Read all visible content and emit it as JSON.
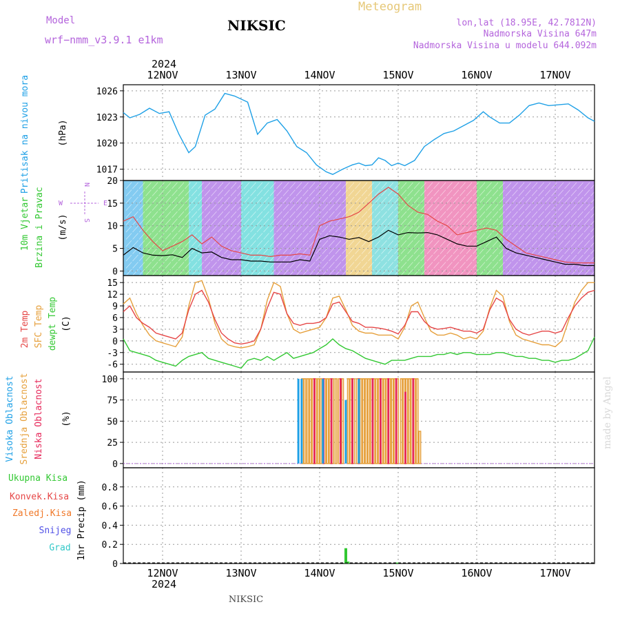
{
  "header": {
    "model_label": "Model",
    "model_value": "wrf−nmm_v3.9.1 e1km",
    "station": "NIKSIC",
    "meteogram": "Meteogram",
    "coords": "lon,lat (18.95E, 42.7812N)",
    "elevation": "Nadmorska Visina 647m",
    "elevation_model": "Nadmorska Visina u modelu 644.092m",
    "year_top": "2024",
    "year_bottom": "2024",
    "footer_station": "NIKSIC",
    "credit": "made by Angel"
  },
  "colors": {
    "pressure": "#1ea0e6",
    "temp2m": "#e64646",
    "sfc_temp": "#e6a03c",
    "dewpoint": "#32c832",
    "high_cloud": "#1ea0e6",
    "mid_cloud": "#e6a03c",
    "low_cloud": "#e6285a",
    "total_precip": "#32c832",
    "conv_precip": "#e64646",
    "frozen_precip": "#f07828",
    "snow": "#5050e6",
    "hail": "#32c8c8",
    "wind_legend": "#b464dc"
  },
  "chart_data": [
    {
      "type": "line",
      "panel": "pressure",
      "xlabels": [
        "12NOV",
        "13NOV",
        "14NOV",
        "15NOV",
        "16NOV",
        "17NOV"
      ],
      "ylabel_main": "Pritisak na nivou mora",
      "ylabel_unit": "(hPa)",
      "yticks": [
        1017,
        1020,
        1023,
        1026
      ],
      "ylim": [
        1015.7,
        1026.7
      ],
      "xlim": [
        0,
        144
      ],
      "series": [
        {
          "x": [
            0,
            2,
            5,
            8,
            11,
            14,
            17,
            20,
            22,
            25,
            28,
            31,
            34,
            38,
            41,
            44,
            47,
            50,
            53,
            56,
            59,
            62,
            64,
            67,
            70,
            72,
            74,
            76,
            78,
            80,
            82,
            84,
            86,
            89,
            92,
            95,
            98,
            101,
            104,
            107,
            110,
            112,
            115,
            118,
            121,
            124,
            127,
            130,
            133,
            136,
            139,
            142,
            144
          ],
          "y": [
            1023.5,
            1022.9,
            1023.3,
            1024.0,
            1023.4,
            1023.6,
            1021.0,
            1018.9,
            1019.6,
            1023.2,
            1023.9,
            1025.7,
            1025.4,
            1024.7,
            1021.0,
            1022.3,
            1022.7,
            1021.4,
            1019.6,
            1018.9,
            1017.5,
            1016.7,
            1016.4,
            1017.0,
            1017.5,
            1017.7,
            1017.4,
            1017.5,
            1018.3,
            1018.0,
            1017.4,
            1017.7,
            1017.4,
            1018.0,
            1019.6,
            1020.4,
            1021.1,
            1021.4,
            1022.0,
            1022.6,
            1023.6,
            1023.0,
            1022.3,
            1022.3,
            1023.2,
            1024.3,
            1024.6,
            1024.3,
            1024.4,
            1024.5,
            1023.8,
            1022.9,
            1022.5
          ]
        }
      ]
    },
    {
      "type": "line",
      "panel": "wind",
      "xlabels": [
        "12NOV",
        "13NOV",
        "14NOV",
        "15NOV",
        "16NOV",
        "17NOV"
      ],
      "ylabel_main": "10m Vjetar",
      "ylabel_sub": "Brzina i Pravac",
      "ylabel_unit": "(m/s)",
      "direction_legend": [
        "N",
        "E",
        "S",
        "W"
      ],
      "yticks": [
        0,
        5,
        10,
        15,
        20
      ],
      "ylim": [
        -1,
        20
      ],
      "xlim": [
        0,
        144
      ],
      "series": [
        {
          "x": [
            0,
            3,
            6,
            9,
            12,
            15,
            18,
            21,
            24,
            27,
            30,
            33,
            36,
            39,
            42,
            45,
            48,
            51,
            54,
            57,
            60,
            63,
            66,
            69,
            72,
            75,
            78,
            81,
            84,
            87,
            90,
            93,
            96,
            99,
            102,
            105,
            108,
            111,
            114,
            117,
            120,
            123,
            126,
            129,
            132,
            135,
            138,
            141,
            144
          ],
          "y": [
            3.5,
            5.2,
            4.0,
            3.5,
            3.4,
            3.6,
            3.0,
            5.0,
            4.0,
            4.2,
            3.0,
            2.5,
            2.5,
            2.2,
            2.2,
            2.0,
            2.0,
            2.0,
            2.5,
            2.2,
            7.0,
            7.8,
            7.5,
            7.0,
            7.4,
            6.5,
            7.5,
            9.0,
            8.0,
            8.5,
            8.4,
            8.5,
            8.0,
            7.0,
            6.0,
            5.5,
            5.5,
            6.5,
            7.5,
            5.0,
            4.0,
            3.5,
            3.0,
            2.5,
            2.0,
            1.5,
            1.5,
            1.2,
            1.2
          ]
        },
        {
          "x": [
            0,
            3,
            6,
            9,
            12,
            15,
            18,
            21,
            24,
            27,
            30,
            33,
            36,
            39,
            42,
            45,
            48,
            51,
            54,
            57,
            60,
            63,
            66,
            69,
            72,
            75,
            78,
            81,
            84,
            87,
            90,
            93,
            96,
            99,
            102,
            105,
            108,
            111,
            114,
            117,
            120,
            123,
            126,
            129,
            132,
            135,
            138,
            141,
            144
          ],
          "y": [
            11.0,
            12.0,
            9.0,
            6.5,
            4.5,
            5.5,
            6.5,
            8.0,
            6.0,
            7.5,
            5.5,
            4.5,
            4.0,
            3.5,
            3.5,
            3.2,
            3.5,
            3.5,
            3.8,
            3.5,
            10.0,
            11.0,
            11.5,
            12.0,
            13.0,
            15.0,
            17.0,
            18.5,
            17.0,
            14.5,
            13.0,
            12.5,
            11.0,
            10.0,
            8.0,
            8.5,
            9.0,
            9.5,
            9.0,
            7.0,
            5.5,
            4.0,
            3.5,
            3.0,
            2.5,
            2.0,
            1.8,
            1.8,
            1.8
          ]
        }
      ]
    },
    {
      "type": "line",
      "panel": "temperature",
      "xlabels": [
        "12NOV",
        "13NOV",
        "14NOV",
        "15NOV",
        "16NOV",
        "17NOV"
      ],
      "ylabel_1": "2m Temp",
      "ylabel_2": "SFC Temp",
      "ylabel_3": "dewpt Temp",
      "ylabel_unit": "(C)",
      "yticks": [
        -6,
        -3,
        0,
        3,
        6,
        9,
        12,
        15
      ],
      "ylim": [
        -8,
        16.8
      ],
      "xlim": [
        0,
        144
      ],
      "series": [
        {
          "x": [
            0,
            2,
            4,
            6,
            8,
            10,
            12,
            14,
            16,
            18,
            20,
            22,
            24,
            26,
            28,
            30,
            32,
            34,
            36,
            38,
            40,
            42,
            44,
            46,
            48,
            50,
            52,
            54,
            56,
            58,
            60,
            62,
            64,
            66,
            68,
            70,
            72,
            74,
            76,
            78,
            80,
            82,
            84,
            86,
            88,
            90,
            92,
            94,
            96,
            98,
            100,
            102,
            104,
            106,
            108,
            110,
            112,
            114,
            116,
            118,
            120,
            122,
            124,
            126,
            128,
            130,
            132,
            134,
            136,
            138,
            140,
            142,
            144
          ],
          "y": [
            7.5,
            9.0,
            6.0,
            4.5,
            3.5,
            2.0,
            1.5,
            1.0,
            0.5,
            2.0,
            8.0,
            12.0,
            13.0,
            10.0,
            5.5,
            2.0,
            0.5,
            -0.5,
            -0.8,
            -0.5,
            0.0,
            3.0,
            8.5,
            12.5,
            12.0,
            7.0,
            4.5,
            4.0,
            4.5,
            4.5,
            4.8,
            6.0,
            9.5,
            10.0,
            7.5,
            5.0,
            4.5,
            3.5,
            3.5,
            3.3,
            3.0,
            2.5,
            1.8,
            4.0,
            7.5,
            7.5,
            5.0,
            3.5,
            3.0,
            3.2,
            3.5,
            3.0,
            2.5,
            2.5,
            2.0,
            3.0,
            8.0,
            11.0,
            10.0,
            5.5,
            3.0,
            2.0,
            1.5,
            2.0,
            2.5,
            2.5,
            2.0,
            2.5,
            6.0,
            9.0,
            11.0,
            12.5,
            13.0
          ]
        },
        {
          "x": [
            0,
            2,
            4,
            6,
            8,
            10,
            12,
            14,
            16,
            18,
            20,
            22,
            24,
            26,
            28,
            30,
            32,
            34,
            36,
            38,
            40,
            42,
            44,
            46,
            48,
            50,
            52,
            54,
            56,
            58,
            60,
            62,
            64,
            66,
            68,
            70,
            72,
            74,
            76,
            78,
            80,
            82,
            84,
            86,
            88,
            90,
            92,
            94,
            96,
            98,
            100,
            102,
            104,
            106,
            108,
            110,
            112,
            114,
            116,
            118,
            120,
            122,
            124,
            126,
            128,
            130,
            132,
            134,
            136,
            138,
            140,
            142,
            144
          ],
          "y": [
            9.5,
            11.0,
            7.0,
            4.0,
            1.5,
            0.0,
            -0.5,
            -1.0,
            -1.5,
            1.0,
            9.0,
            15.0,
            15.5,
            11.0,
            4.5,
            0.5,
            -1.0,
            -1.5,
            -1.8,
            -1.5,
            -1.0,
            3.0,
            10.5,
            15.0,
            14.0,
            7.0,
            3.0,
            2.0,
            2.5,
            3.0,
            3.5,
            6.0,
            11.0,
            11.5,
            8.0,
            4.0,
            2.5,
            2.0,
            2.0,
            1.5,
            1.5,
            1.5,
            0.5,
            3.5,
            9.0,
            10.0,
            6.0,
            2.5,
            1.5,
            1.5,
            2.0,
            1.5,
            0.5,
            1.0,
            0.5,
            2.5,
            8.5,
            13.0,
            11.5,
            5.0,
            1.5,
            0.5,
            0.0,
            -0.5,
            -1.0,
            -1.0,
            -1.5,
            0.0,
            5.0,
            10.0,
            13.0,
            15.0,
            15.0
          ]
        },
        {
          "x": [
            0,
            2,
            4,
            6,
            8,
            10,
            12,
            14,
            16,
            18,
            20,
            22,
            24,
            26,
            28,
            30,
            32,
            34,
            36,
            38,
            40,
            42,
            44,
            46,
            48,
            50,
            52,
            54,
            56,
            58,
            60,
            62,
            64,
            66,
            68,
            70,
            72,
            74,
            76,
            78,
            80,
            82,
            84,
            86,
            88,
            90,
            92,
            94,
            96,
            98,
            100,
            102,
            104,
            106,
            108,
            110,
            112,
            114,
            116,
            118,
            120,
            122,
            124,
            126,
            128,
            130,
            132,
            134,
            136,
            138,
            140,
            142,
            144
          ],
          "y": [
            0.5,
            -2.5,
            -3.0,
            -3.5,
            -4.0,
            -5.0,
            -5.5,
            -6.0,
            -6.5,
            -5.0,
            -4.0,
            -3.5,
            -3.0,
            -4.5,
            -5.0,
            -5.5,
            -6.0,
            -6.5,
            -7.0,
            -5.0,
            -4.5,
            -5.0,
            -4.0,
            -5.0,
            -4.0,
            -3.0,
            -4.5,
            -4.0,
            -3.5,
            -3.0,
            -2.0,
            -1.0,
            0.5,
            -1.0,
            -2.0,
            -2.5,
            -3.5,
            -4.5,
            -5.0,
            -5.5,
            -6.0,
            -5.0,
            -5.0,
            -5.0,
            -4.5,
            -4.0,
            -4.0,
            -4.0,
            -3.5,
            -3.5,
            -3.0,
            -3.5,
            -3.0,
            -3.0,
            -3.5,
            -3.5,
            -3.5,
            -3.0,
            -3.0,
            -3.5,
            -4.0,
            -4.0,
            -4.5,
            -4.5,
            -5.0,
            -5.0,
            -5.5,
            -5.0,
            -5.0,
            -4.5,
            -3.5,
            -2.5,
            1.0
          ]
        }
      ]
    },
    {
      "type": "bar",
      "panel": "cloud",
      "xlabels": [
        "12NOV",
        "13NOV",
        "14NOV",
        "15NOV",
        "16NOV",
        "17NOV"
      ],
      "ylabel_1": "Visoka Oblacnost",
      "ylabel_2": "Srednja Oblacnost",
      "ylabel_3": "Niska Oblacnost",
      "ylabel_unit": "(%)",
      "yticks": [
        0,
        25,
        50,
        75,
        100
      ],
      "ylim": [
        -5,
        108
      ],
      "xlim": [
        0,
        144
      ],
      "high_x": [
        53.5,
        54.5,
        61,
        68,
        72
      ],
      "high_y": [
        100,
        100,
        100,
        75,
        100
      ],
      "mid_x": [
        54.8,
        55.5,
        56.4,
        57.2,
        58.0,
        58.8,
        59.6,
        60.4,
        61.6,
        62.4,
        63.2,
        64.0,
        65.0,
        66.0,
        67.0,
        68.8,
        69.6,
        70.4,
        71.5,
        72.6,
        73.4,
        74.2,
        75.0,
        75.8,
        76.6,
        77.4,
        78.2,
        79.0,
        79.8,
        80.6,
        81.4,
        82.2,
        83.0,
        83.8,
        85.0,
        85.8,
        86.6,
        87.4,
        88.2,
        89.0,
        89.8,
        90.6
      ],
      "mid_y": [
        100,
        100,
        100,
        100,
        100,
        100,
        100,
        100,
        100,
        100,
        100,
        100,
        100,
        100,
        100,
        100,
        100,
        100,
        100,
        100,
        100,
        100,
        100,
        100,
        100,
        100,
        100,
        100,
        100,
        100,
        100,
        100,
        100,
        100,
        100,
        100,
        100,
        100,
        100,
        100,
        100,
        38
      ],
      "low_x": [
        58.4,
        61.2,
        63.6,
        66.4,
        70.0,
        72.0,
        76.2,
        78.6,
        81.0,
        83.4,
        86.2,
        88.6
      ],
      "low_y": [
        100,
        100,
        100,
        100,
        100,
        100,
        100,
        100,
        100,
        100,
        84,
        100
      ]
    },
    {
      "type": "bar",
      "panel": "precip",
      "xlabels": [
        "12NOV",
        "13NOV",
        "14NOV",
        "15NOV",
        "16NOV",
        "17NOV"
      ],
      "ylabel_1": "Ukupna Kisa",
      "ylabel_2": "Konvek.Kisa",
      "ylabel_3": "Zaledj.Kisa",
      "ylabel_4": "Snijeg",
      "ylabel_5": "Grad",
      "ylabel_unit": "1hr Precip (mm)",
      "yticks": [
        0,
        0.2,
        0.4,
        0.6,
        0.8
      ],
      "ylim": [
        0,
        1.0
      ],
      "xlim": [
        0,
        144
      ],
      "total_x": [
        68.0,
        68.7,
        83.7
      ],
      "total_y": [
        0.16,
        0.02,
        0.01
      ]
    }
  ]
}
